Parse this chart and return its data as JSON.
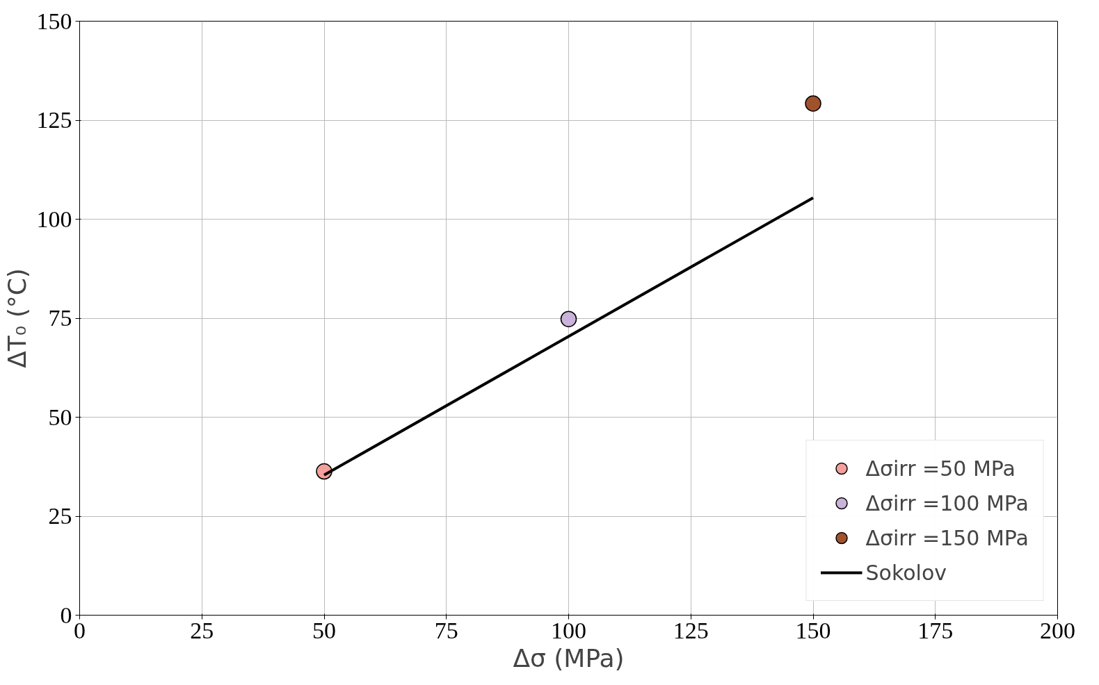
{
  "chart_data": {
    "type": "scatter",
    "xlabel": "Δσ (MPa)",
    "ylabel": "ΔT₀ (°C)",
    "xlim": [
      0,
      200
    ],
    "ylim": [
      0,
      150
    ],
    "xticks": [
      0,
      25,
      50,
      75,
      100,
      125,
      150,
      175,
      200
    ],
    "yticks": [
      0,
      25,
      50,
      75,
      100,
      125,
      150
    ],
    "grid": true,
    "legend": "bottom right",
    "series": [
      {
        "name": "Δσirr =50 MPa",
        "color": "#f4a09c",
        "marker": "circle",
        "x": [
          50
        ],
        "values": [
          36.3
        ]
      },
      {
        "name": "Δσirr =100 MPa",
        "color": "#c9b3d9",
        "marker": "circle",
        "x": [
          100
        ],
        "values": [
          74.8
        ]
      },
      {
        "name": "Δσirr =150 MPa",
        "color": "#a0522d",
        "marker": "circle",
        "x": [
          150
        ],
        "values": [
          129.2
        ]
      },
      {
        "name": "Sokolov",
        "type": "line",
        "color": "#000000",
        "line_style": "solid",
        "x": [
          50,
          150
        ],
        "values": [
          35.4,
          105.4
        ]
      }
    ]
  }
}
